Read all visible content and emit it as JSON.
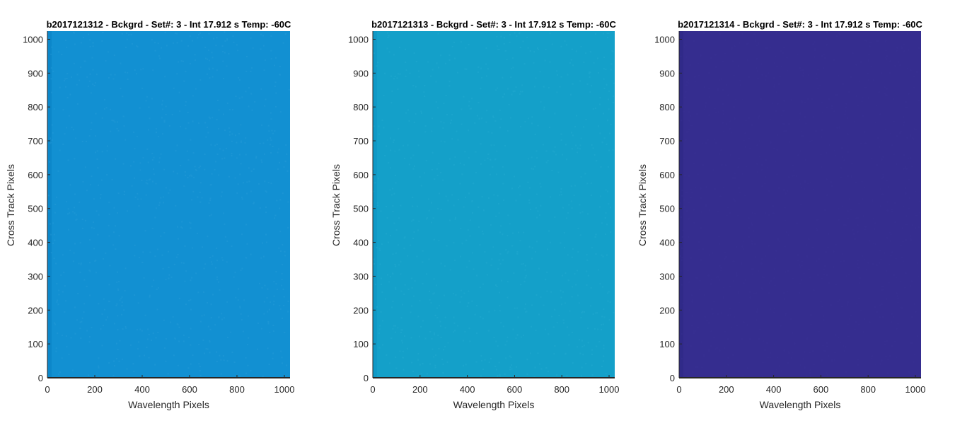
{
  "figure": {
    "background": "#ffffff"
  },
  "chart_data": [
    {
      "type": "heatmap",
      "title": "b2017121312 - Bckgrd - Set#: 3 - Int 17.912 s Temp: -60C",
      "xlabel": "Wavelength Pixels",
      "ylabel": "Cross Track Pixels",
      "xlim": [
        0,
        1024
      ],
      "ylim": [
        0,
        1024
      ],
      "xticks": [
        0,
        200,
        400,
        600,
        800,
        1000
      ],
      "yticks": [
        0,
        100,
        200,
        300,
        400,
        500,
        600,
        700,
        800,
        900,
        1000
      ],
      "grid": false,
      "fill_color": "#1290d2",
      "noise_color": "#2c9fd9",
      "edge_color": "#0b84c8"
    },
    {
      "type": "heatmap",
      "title": "b2017121313 - Bckgrd - Set#: 3 - Int 17.912 s Temp: -60C",
      "xlabel": "Wavelength Pixels",
      "ylabel": "Cross Track Pixels",
      "xlim": [
        0,
        1024
      ],
      "ylim": [
        0,
        1024
      ],
      "xticks": [
        0,
        200,
        400,
        600,
        800,
        1000
      ],
      "yticks": [
        0,
        100,
        200,
        300,
        400,
        500,
        600,
        700,
        800,
        900,
        1000
      ],
      "grid": false,
      "fill_color": "#14a0c9",
      "noise_color": "#2aaed3",
      "edge_color": "#0e97c6"
    },
    {
      "type": "heatmap",
      "title": "b2017121314 - Bckgrd - Set#: 3 - Int 17.912 s Temp: -60C",
      "xlabel": "Wavelength Pixels",
      "ylabel": "Cross Track Pixels",
      "xlim": [
        0,
        1024
      ],
      "ylim": [
        0,
        1024
      ],
      "xticks": [
        0,
        200,
        400,
        600,
        800,
        1000
      ],
      "yticks": [
        0,
        100,
        200,
        300,
        400,
        500,
        600,
        700,
        800,
        900,
        1000
      ],
      "grid": false,
      "fill_color": "#352d8f",
      "noise_color": "#3a3296",
      "edge_color": "#302987"
    }
  ]
}
